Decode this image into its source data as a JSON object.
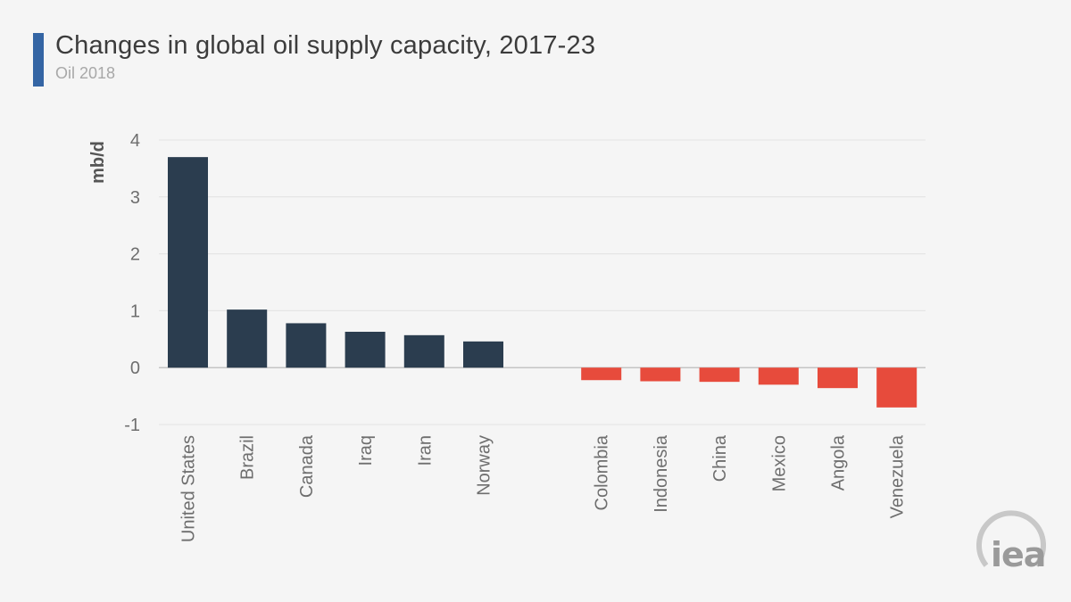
{
  "header": {
    "title": "Changes in global oil supply capacity, 2017-23",
    "subtitle": "Oil 2018"
  },
  "logo": {
    "text": "iea"
  },
  "colors": {
    "positive": "#2b3d4f",
    "negative": "#e74b3c",
    "accent": "#3465a4"
  },
  "chart_data": {
    "type": "bar",
    "ylabel": "mb/d",
    "ylim": [
      -1,
      4
    ],
    "yticks": [
      -1,
      0,
      1,
      2,
      3,
      4
    ],
    "grid": true,
    "categories": [
      "United States",
      "Brazil",
      "Canada",
      "Iraq",
      "Iran",
      "Norway",
      "Colombia",
      "Indonesia",
      "China",
      "Mexico",
      "Angola",
      "Venezuela"
    ],
    "values": [
      3.7,
      1.02,
      0.78,
      0.63,
      0.57,
      0.46,
      -0.22,
      -0.24,
      -0.25,
      -0.3,
      -0.36,
      -0.7
    ]
  }
}
